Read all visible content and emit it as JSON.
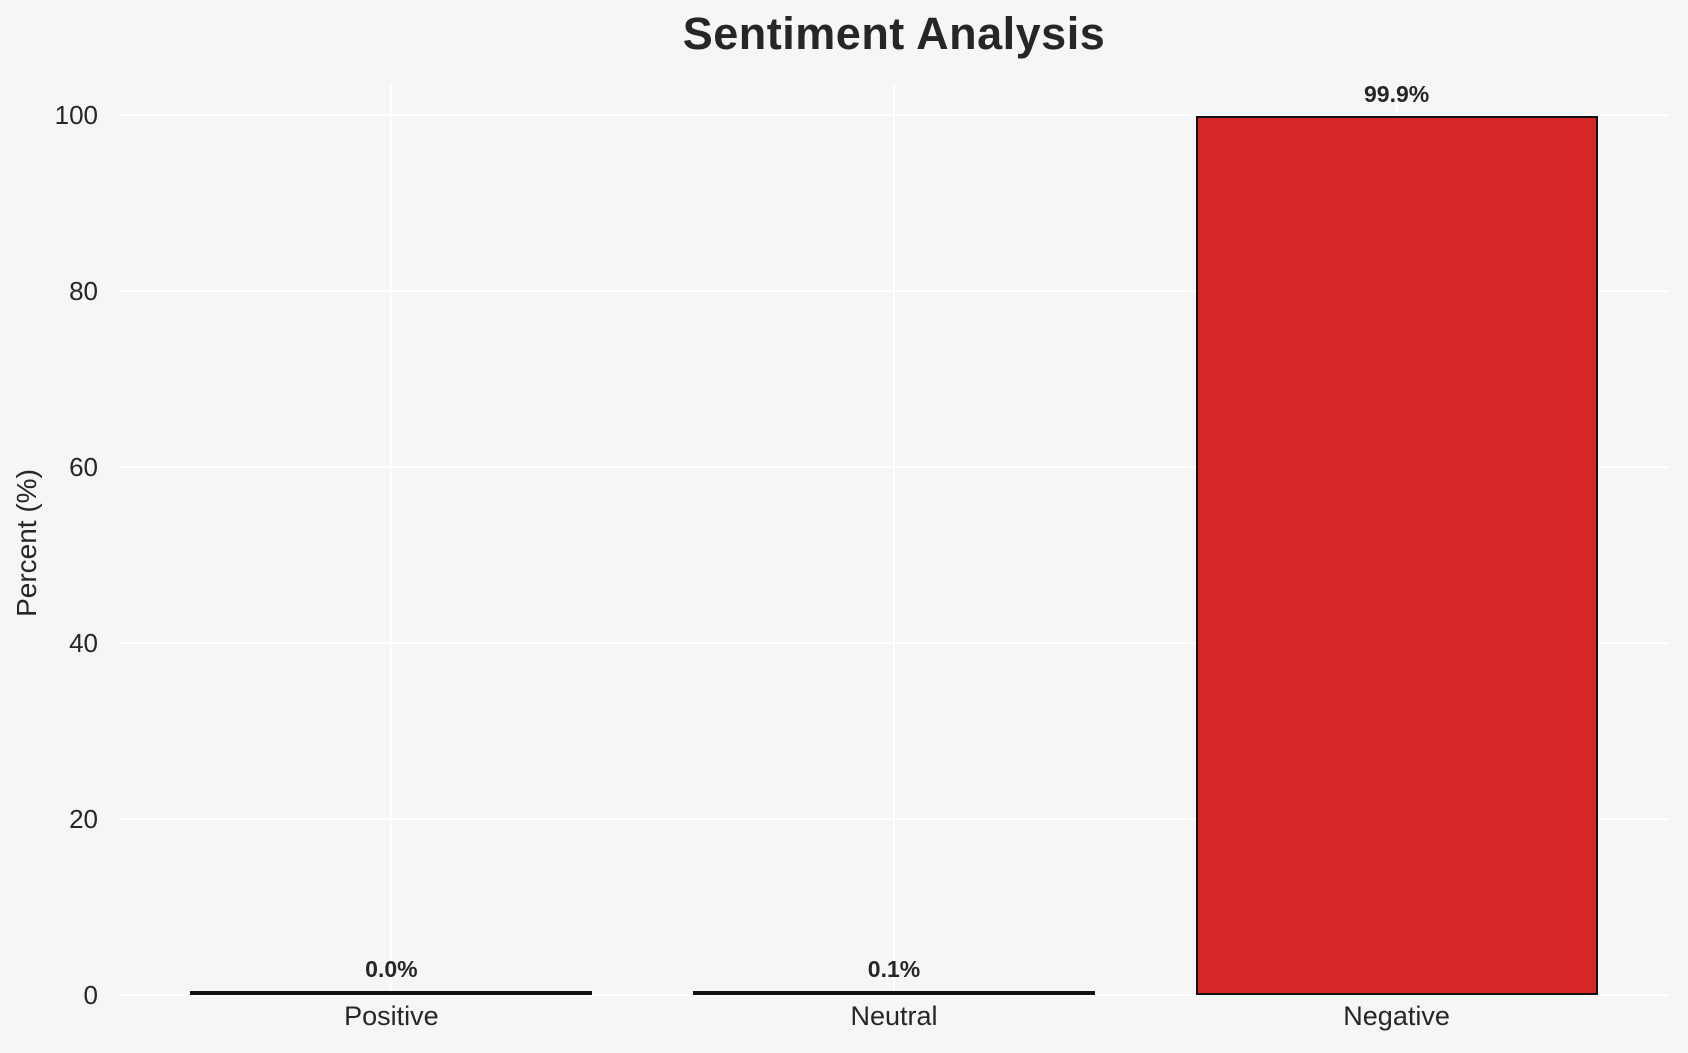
{
  "chart_data": {
    "type": "bar",
    "title": "Sentiment Analysis",
    "xlabel": "",
    "ylabel": "Percent (%)",
    "categories": [
      "Positive",
      "Neutral",
      "Negative"
    ],
    "values": [
      0.0,
      0.1,
      99.9
    ],
    "bar_labels": [
      "0.0%",
      "0.1%",
      "99.9%"
    ],
    "yticks": [
      0,
      20,
      40,
      60,
      80,
      100
    ],
    "ylim": [
      0,
      100
    ],
    "grid": "on",
    "legend": "none",
    "bar_width_fraction": 0.8,
    "colors": {
      "bar_fill": "#d62728",
      "bar_edge": "#111111",
      "background": "#f6f6f6",
      "gridline": "#ffffff",
      "text": "#262626"
    }
  }
}
